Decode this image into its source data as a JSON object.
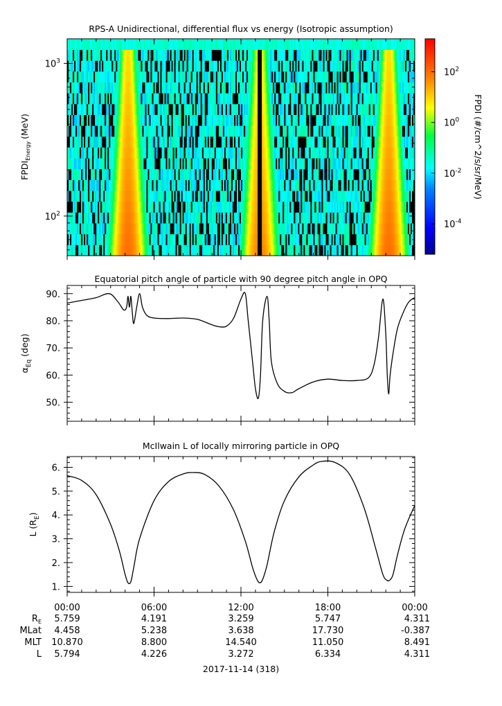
{
  "chart_data": [
    {
      "type": "heatmap",
      "title": "RPS-A Unidirectional, differential flux vs energy (Isotropic assumption)",
      "ylabel_main": "FPDI",
      "ylabel_sub": "Energy",
      "ylabel_unit": "(MeV)",
      "yscale": "log",
      "ylim": [
        55,
        1450
      ],
      "yticks": [
        {
          "value": 100,
          "base": "10",
          "exp": "2"
        },
        {
          "value": 1000,
          "base": "10",
          "exp": "3"
        }
      ],
      "xlim": [
        0,
        24
      ],
      "colorbar": {
        "label": "FPDI (#/cm^2/s/sr/MeV)",
        "scale": "log",
        "range_exp": [
          -5.2,
          3.3
        ],
        "ticks": [
          {
            "value": -4,
            "base": "10",
            "exp": "-4"
          },
          {
            "value": -2,
            "base": "10",
            "exp": "-2"
          },
          {
            "value": 0,
            "base": "10",
            "exp": "0"
          },
          {
            "value": 2,
            "base": "10",
            "exp": "2"
          }
        ]
      },
      "bands": [
        {
          "center_h": 4.2,
          "peak_log_flux": 2.0
        },
        {
          "center_h": 13.3,
          "peak_log_flux": 1.8
        },
        {
          "center_h": 22.2,
          "peak_log_flux": 2.0
        }
      ]
    },
    {
      "type": "line",
      "title": "Equatorial pitch angle of particle with 90 degree pitch angle in OPQ",
      "ylabel_main": "α",
      "ylabel_sub": "Eq",
      "ylabel_unit": "(deg)",
      "ylim": [
        43,
        93
      ],
      "yticks": [
        "50.",
        "60.",
        "70.",
        "80.",
        "90."
      ],
      "xlim": [
        0,
        24
      ],
      "series": [
        {
          "x": [
            0,
            1,
            2,
            2.9,
            3.5,
            3.9,
            4.1,
            4.2,
            4.3,
            4.4,
            4.5,
            4.6,
            4.8,
            5.0,
            5.2,
            5.5,
            6.0,
            7.0,
            8.0,
            9.0,
            10.0,
            10.5,
            11.0,
            11.5,
            12.0,
            12.3,
            12.5,
            12.8,
            13.0,
            13.2,
            13.35,
            13.5,
            13.8,
            13.95,
            14.1,
            14.5,
            15.0,
            15.5,
            16.0,
            17.0,
            18.0,
            19.0,
            20.0,
            20.8,
            21.2,
            21.5,
            21.8,
            22.0,
            22.1,
            22.2,
            22.3,
            22.5,
            22.8,
            23.2,
            23.6,
            24.0
          ],
          "y": [
            86.5,
            87.5,
            88.5,
            90.0,
            87.0,
            84.0,
            85.0,
            89.0,
            85.0,
            89.0,
            83.0,
            79.0,
            85.0,
            90.0,
            85.0,
            82.0,
            81.0,
            80.8,
            81.0,
            80.5,
            78.5,
            77.8,
            78.0,
            81.0,
            88.0,
            90.0,
            80.0,
            65.0,
            55.0,
            51.5,
            60.0,
            80.0,
            89.0,
            80.0,
            65.0,
            57.0,
            54.0,
            53.5,
            55.0,
            57.5,
            58.5,
            58.0,
            58.0,
            59.0,
            64.0,
            74.0,
            88.0,
            75.0,
            60.0,
            53.0,
            60.0,
            68.0,
            77.0,
            83.0,
            87.0,
            88.5
          ]
        }
      ]
    },
    {
      "type": "line",
      "title": "McIlwain L of locally mirroring particle in OPQ",
      "ylabel_main": "L (R",
      "ylabel_sub": "E",
      "ylabel_unit": ")",
      "ylim": [
        0.75,
        6.45
      ],
      "yticks": [
        "1.",
        "2.",
        "3.",
        "4.",
        "5.",
        "6."
      ],
      "xlim": [
        0,
        24
      ],
      "series": [
        {
          "x": [
            0,
            1,
            2,
            3,
            3.6,
            4.0,
            4.2,
            4.4,
            4.6,
            5.0,
            6.0,
            7.0,
            8.0,
            8.7,
            9.5,
            10.5,
            11.5,
            12.3,
            12.8,
            13.1,
            13.3,
            13.5,
            13.8,
            14.3,
            15.0,
            16.0,
            17.0,
            17.6,
            18.5,
            19.5,
            20.5,
            21.3,
            21.8,
            22.1,
            22.3,
            22.5,
            22.8,
            23.3,
            24.0
          ],
          "y": [
            5.65,
            5.45,
            4.85,
            3.6,
            2.5,
            1.5,
            1.15,
            1.2,
            1.8,
            3.0,
            4.6,
            5.4,
            5.72,
            5.78,
            5.7,
            5.2,
            4.2,
            2.9,
            1.8,
            1.3,
            1.15,
            1.3,
            1.9,
            3.3,
            4.6,
            5.6,
            6.1,
            6.25,
            6.2,
            5.7,
            4.3,
            2.6,
            1.5,
            1.25,
            1.28,
            1.5,
            2.3,
            3.4,
            4.4
          ]
        }
      ]
    }
  ],
  "xaxis": {
    "tick_labels": [
      "00:00",
      "06:00",
      "12:00",
      "18:00",
      "00:00"
    ],
    "tick_hours": [
      0,
      6,
      12,
      18,
      24
    ],
    "date_label": "2017-11-14 (318)"
  },
  "ephemeris": {
    "rows": [
      {
        "label": "R",
        "sub": "E",
        "values": [
          "5.759",
          "4.191",
          "3.259",
          "5.747",
          "4.311"
        ]
      },
      {
        "label": "MLat",
        "sub": "",
        "values": [
          "4.458",
          "5.238",
          "3.638",
          "17.730",
          "-0.387"
        ]
      },
      {
        "label": "MLT",
        "sub": "",
        "values": [
          "10.870",
          "8.800",
          "14.540",
          "11.050",
          "8.491"
        ]
      },
      {
        "label": "L",
        "sub": "",
        "values": [
          "5.794",
          "4.226",
          "3.272",
          "6.334",
          "4.311"
        ]
      }
    ]
  }
}
